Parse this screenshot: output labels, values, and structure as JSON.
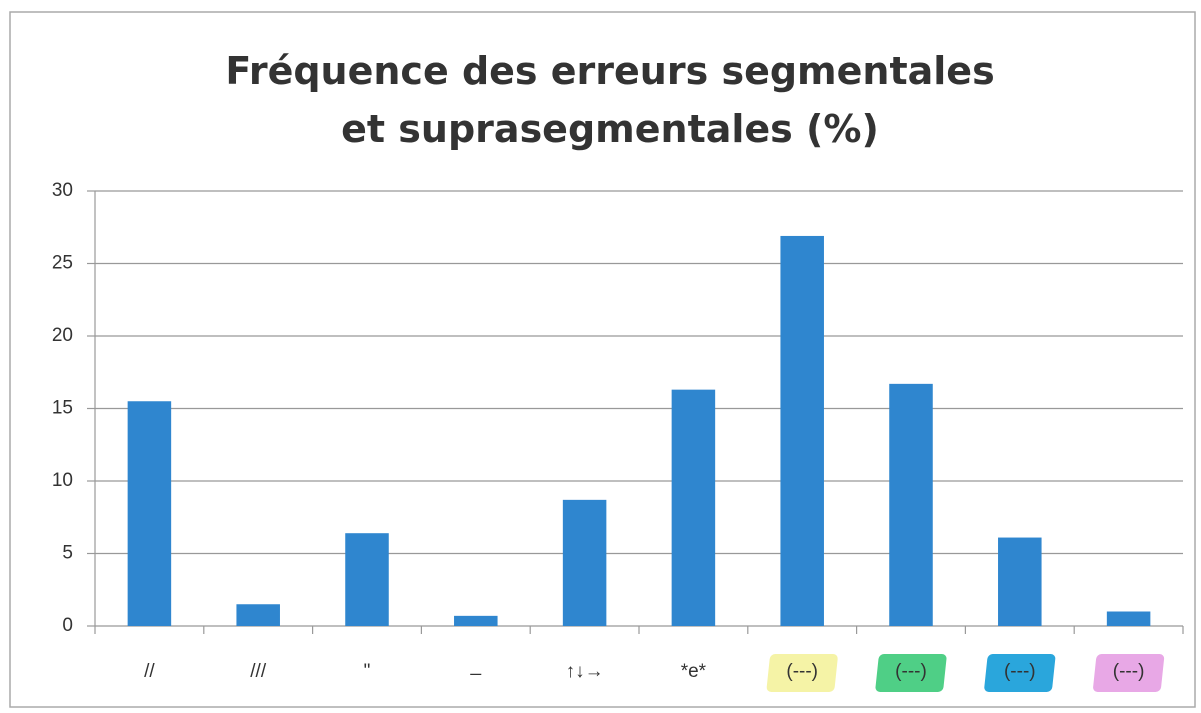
{
  "chart_data": {
    "type": "bar",
    "title": "Fréquence des erreurs segmentales et suprasegmentales (%)",
    "categories": [
      "//",
      "///",
      "\"",
      "_",
      "↑↓→",
      "*e*",
      "(---)",
      "(---)",
      "(---)",
      "(---)"
    ],
    "label_highlights": [
      null,
      null,
      null,
      null,
      null,
      null,
      "#f5f3a6",
      "#4fcf86",
      "#2aa6dc",
      "#e8a8e6"
    ],
    "values": [
      15.5,
      1.5,
      6.4,
      0.7,
      8.7,
      16.3,
      26.9,
      16.7,
      6.1,
      1.0
    ],
    "color": "#2f86cf",
    "ylim": [
      0,
      30
    ],
    "yticks": [
      0,
      5,
      10,
      15,
      20,
      25,
      30
    ],
    "grid": true
  }
}
